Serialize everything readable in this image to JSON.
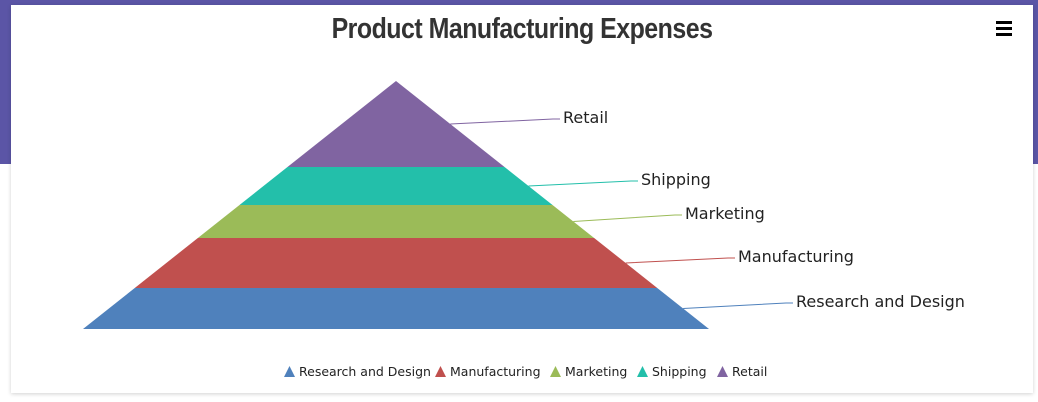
{
  "chart_data": {
    "type": "pyramid",
    "title": "Product Manufacturing Expenses",
    "legend_position": "bottom-center",
    "series": [
      {
        "name": "Research and Design",
        "color": "#4f81bc"
      },
      {
        "name": "Manufacturing",
        "color": "#c0504e"
      },
      {
        "name": "Marketing",
        "color": "#9bbb58"
      },
      {
        "name": "Shipping",
        "color": "#23bfaa"
      },
      {
        "name": "Retail",
        "color": "#8064a1"
      }
    ]
  },
  "menu": {
    "icon": "hamburger-icon"
  }
}
